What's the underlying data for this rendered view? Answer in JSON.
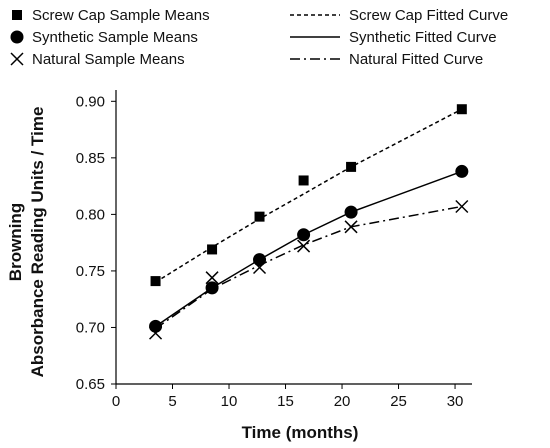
{
  "chart_data": {
    "type": "line",
    "xlabel": "Time (months)",
    "ylabel_lines": [
      "Browning",
      "Absorbance Reading Units / Time"
    ],
    "xlim": [
      0,
      31.5
    ],
    "ylim": [
      0.65,
      0.91
    ],
    "xticks": [
      0,
      5,
      10,
      15,
      20,
      25,
      30
    ],
    "yticks": [
      0.65,
      0.7,
      0.75,
      0.8,
      0.85,
      0.9
    ],
    "ytick_labels": [
      "0.65",
      "0.70",
      "0.75",
      "0.80",
      "0.85",
      "0.90"
    ],
    "grid": false,
    "legend_position": "top",
    "x": [
      3.5,
      8.5,
      12.7,
      16.6,
      20.8,
      30.6
    ],
    "series": [
      {
        "legend_means": "Screw Cap Sample Means",
        "legend_fit": "Screw Cap Fitted Curve",
        "marker": "square",
        "line_style": "dashed",
        "means": [
          0.741,
          0.769,
          0.798,
          0.83,
          0.842,
          0.893
        ],
        "fit": [
          0.74,
          0.771,
          0.796,
          0.818,
          0.842,
          0.893
        ]
      },
      {
        "legend_means": "Synthetic Sample Means",
        "legend_fit": "Synthetic Fitted Curve",
        "marker": "circle",
        "line_style": "solid",
        "means": [
          0.701,
          0.735,
          0.76,
          0.782,
          0.802,
          0.838
        ],
        "fit": [
          0.701,
          0.735,
          0.76,
          0.782,
          0.802,
          0.838
        ]
      },
      {
        "legend_means": "Natural Sample Means",
        "legend_fit": "Natural Fitted Curve",
        "marker": "x",
        "line_style": "dash-dot",
        "means": [
          0.695,
          0.744,
          0.753,
          0.772,
          0.789,
          0.807
        ],
        "fit": [
          0.699,
          0.734,
          0.755,
          0.773,
          0.789,
          0.807
        ]
      }
    ]
  }
}
